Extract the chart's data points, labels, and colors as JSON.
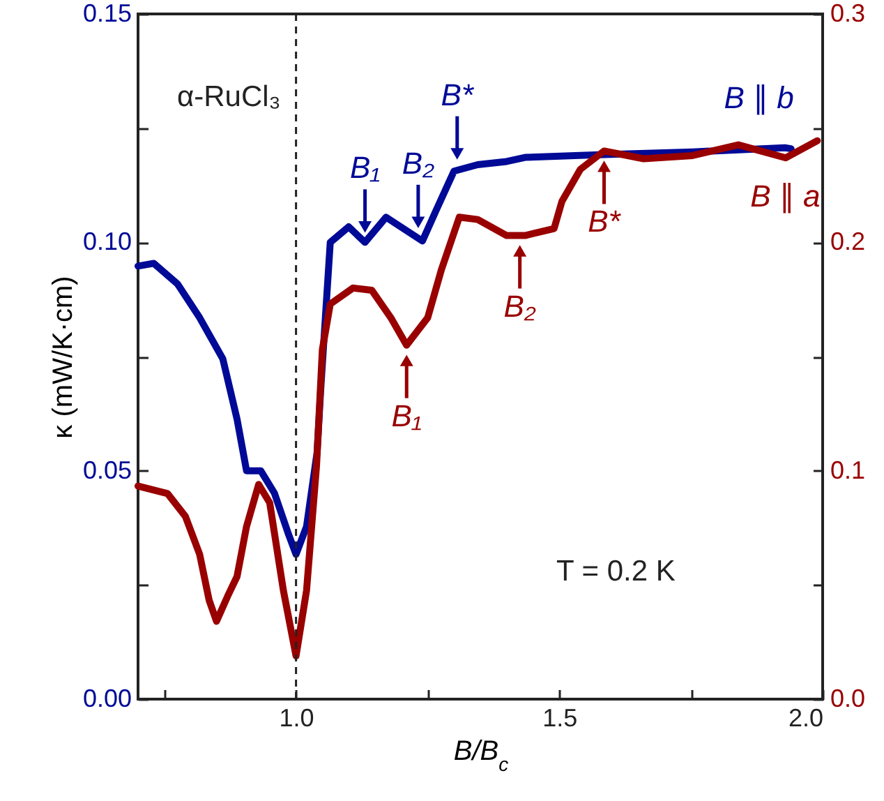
{
  "chart_data": {
    "type": "line",
    "xlabel": "B/B$_{c}$",
    "ylabel": "κ (mW/K·cm)",
    "xlim": [
      0.7,
      2.0
    ],
    "xticks": [
      {
        "value": 0.75,
        "label": null
      },
      {
        "value": 1,
        "label": "1.0"
      },
      {
        "value": 1.25,
        "label": null
      },
      {
        "value": 1.5,
        "label": "1.5"
      },
      {
        "value": 1.75,
        "label": null
      },
      {
        "value": 2,
        "label": "2.0"
      }
    ],
    "ylim": [
      0,
      0.15
    ],
    "yticks": [
      {
        "value": 0,
        "label": "0.00"
      },
      {
        "value": 0.025,
        "label": null
      },
      {
        "value": 0.05,
        "label": "0.05"
      },
      {
        "value": 0.075,
        "label": null
      },
      {
        "value": 0.1,
        "label": "0.10"
      },
      {
        "value": 0.125,
        "label": null
      },
      {
        "value": 0.15,
        "label": "0.15"
      }
    ],
    "y2lim": [
      0,
      0.3
    ],
    "y2ticks": [
      {
        "value": 0,
        "label": "0.0"
      },
      {
        "value": 0.05,
        "label": null
      },
      {
        "value": 0.1,
        "label": "0.1"
      },
      {
        "value": 0.15,
        "label": null
      },
      {
        "value": 0.2,
        "label": "0.2"
      },
      {
        "value": 0.25,
        "label": null
      },
      {
        "value": 0.3,
        "label": "0.3"
      }
    ],
    "series": [
      {
        "name": "B ∥ b",
        "color": "#000a96",
        "x": [
          0.7,
          0.73,
          0.775,
          0.817,
          0.861,
          0.888,
          0.906,
          0.933,
          0.959,
          0.986,
          1.0,
          1.02,
          1.04,
          1.047,
          1.065,
          1.1,
          1.131,
          1.171,
          1.24,
          1.266,
          1.3,
          1.345,
          1.4,
          1.435,
          1.576,
          1.753,
          1.928,
          1.94
        ],
        "values": [
          0.0948,
          0.0954,
          0.0909,
          0.0835,
          0.0745,
          0.0613,
          0.05,
          0.05,
          0.0451,
          0.036,
          0.0317,
          0.0378,
          0.054,
          0.068,
          0.1,
          0.1034,
          0.1,
          0.1055,
          0.1003,
          0.107,
          0.1156,
          0.117,
          0.1177,
          0.1186,
          0.1192,
          0.1198,
          0.1207,
          0.1205
        ]
      },
      {
        "name": "B ∥ a",
        "color": "#990000",
        "axis": "y2",
        "x": [
          0.7,
          0.756,
          0.79,
          0.817,
          0.835,
          0.849,
          0.87,
          0.888,
          0.906,
          0.929,
          0.95,
          0.976,
          1.0,
          1.02,
          1.039,
          1.05,
          1.065,
          1.108,
          1.144,
          1.18,
          1.21,
          1.25,
          1.276,
          1.31,
          1.345,
          1.4,
          1.435,
          1.49,
          1.505,
          1.54,
          1.585,
          1.66,
          1.753,
          1.84,
          1.93,
          1.99
        ],
        "values": [
          0.0933,
          0.09,
          0.08,
          0.0634,
          0.0433,
          0.0341,
          0.045,
          0.0537,
          0.0756,
          0.094,
          0.086,
          0.0476,
          0.0189,
          0.0476,
          0.1024,
          0.153,
          0.173,
          0.18,
          0.179,
          0.167,
          0.155,
          0.167,
          0.188,
          0.211,
          0.21,
          0.203,
          0.203,
          0.206,
          0.218,
          0.232,
          0.24,
          0.2366,
          0.238,
          0.2427,
          0.237,
          0.2445
        ]
      }
    ],
    "ref_lines": [
      {
        "axis": "x",
        "value": 1.0,
        "line_style": "dashed"
      }
    ],
    "annotations": [
      "α-RuCl₃",
      "T = 0.2 K",
      {
        "text": "B₁",
        "x": 1.131,
        "y": 0.1
      },
      {
        "text": "B₂",
        "x": 1.232,
        "y": 0.101
      },
      {
        "text": "B*",
        "x": 1.306,
        "y": 0.116
      },
      {
        "text": "B₁",
        "x": 1.21,
        "y": 0.0775
      },
      {
        "text": "B₂",
        "x": 1.425,
        "y": 0.1015
      },
      {
        "text": "B*",
        "x": 1.585,
        "y": 0.12
      }
    ]
  }
}
